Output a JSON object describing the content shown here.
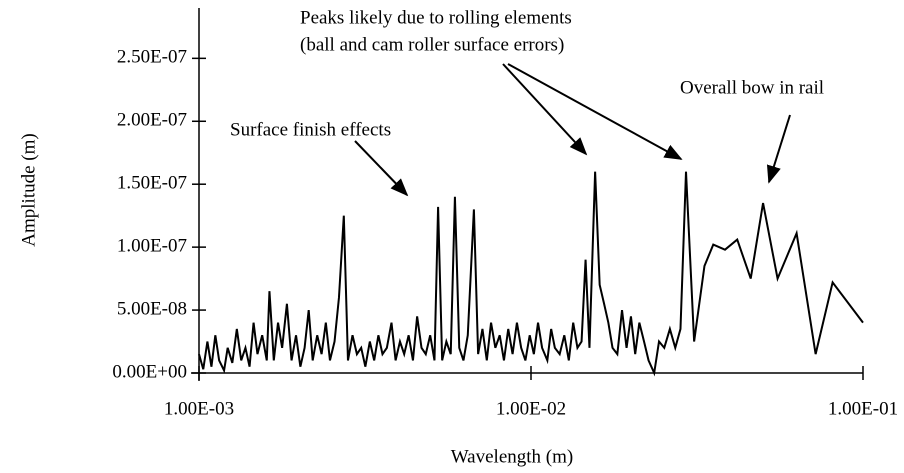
{
  "chart_data": {
    "type": "line",
    "xlabel": "Wavelength (m)",
    "ylabel": "Amplitude (m)",
    "xscale": "log",
    "xlim": [
      0.001,
      0.1
    ],
    "xticks": [
      {
        "value": 0.001,
        "label": "1.00E-03"
      },
      {
        "value": 0.01,
        "label": "1.00E-02"
      },
      {
        "value": 0.1,
        "label": "1.00E-01"
      }
    ],
    "ylim": [
      0,
      2.9e-07
    ],
    "yticks": [
      {
        "value": 0,
        "label": "0.00E+00"
      },
      {
        "value": 5e-08,
        "label": "5.00E-08"
      },
      {
        "value": 1e-07,
        "label": "1.00E-07"
      },
      {
        "value": 1.5e-07,
        "label": "1.50E-07"
      },
      {
        "value": 2e-07,
        "label": "2.00E-07"
      },
      {
        "value": 2.5e-07,
        "label": "2.50E-07"
      }
    ],
    "grid": false,
    "annotations": [
      "Surface finish effects",
      "Peaks likely due to rolling elements",
      "(ball and cam roller surface errors)",
      "Overall bow in rail"
    ],
    "series": [
      {
        "color": "#000000",
        "x": [
          0.001,
          0.00103,
          0.00106,
          0.00109,
          0.00112,
          0.00115,
          0.00119,
          0.00122,
          0.00126,
          0.0013,
          0.00134,
          0.00138,
          0.00142,
          0.00146,
          0.0015,
          0.00155,
          0.0016,
          0.00163,
          0.00168,
          0.00173,
          0.00178,
          0.00184,
          0.0019,
          0.00196,
          0.00202,
          0.00208,
          0.00214,
          0.0022,
          0.00227,
          0.00234,
          0.00241,
          0.00248,
          0.00256,
          0.00264,
          0.00273,
          0.00281,
          0.0029,
          0.00299,
          0.00308,
          0.00317,
          0.00327,
          0.00337,
          0.00347,
          0.00357,
          0.00368,
          0.0038,
          0.00391,
          0.00403,
          0.00415,
          0.00428,
          0.00441,
          0.00454,
          0.00468,
          0.00482,
          0.00497,
          0.00512,
          0.00525,
          0.0054,
          0.00556,
          0.00573,
          0.0059,
          0.00608,
          0.00626,
          0.00645,
          0.00673,
          0.00693,
          0.00714,
          0.00736,
          0.00758,
          0.00781,
          0.00805,
          0.00829,
          0.00854,
          0.0088,
          0.00907,
          0.00934,
          0.00962,
          0.00991,
          0.0102,
          0.0105,
          0.0108,
          0.0112,
          0.0115,
          0.0118,
          0.0122,
          0.0126,
          0.013,
          0.0134,
          0.0138,
          0.0142,
          0.0146,
          0.015,
          0.0156,
          0.0161,
          0.0166,
          0.0171,
          0.0176,
          0.0182,
          0.0188,
          0.0194,
          0.02,
          0.0206,
          0.0212,
          0.0219,
          0.0226,
          0.0235,
          0.0243,
          0.0252,
          0.0262,
          0.0272,
          0.0282,
          0.0293,
          0.031,
          0.0333,
          0.0354,
          0.0384,
          0.0418,
          0.0459,
          0.05,
          0.0553,
          0.0631,
          0.072,
          0.081,
          0.1
        ],
        "values": [
          1.5e-08,
          3e-09,
          2.5e-08,
          5e-09,
          3e-08,
          1e-08,
          2e-09,
          2e-08,
          8e-09,
          3.5e-08,
          1e-08,
          2e-08,
          5e-09,
          4e-08,
          1.5e-08,
          3e-08,
          1e-08,
          6.5e-08,
          1e-08,
          4e-08,
          2e-08,
          5.5e-08,
          1e-08,
          3e-08,
          5e-09,
          2e-08,
          5e-08,
          1e-08,
          3e-08,
          1.5e-08,
          4e-08,
          1e-08,
          2.5e-08,
          6e-08,
          1.25e-07,
          1e-08,
          3e-08,
          1.5e-08,
          2e-08,
          5e-09,
          2.5e-08,
          1e-08,
          3e-08,
          1.5e-08,
          2e-08,
          4e-08,
          1e-08,
          2.5e-08,
          1.5e-08,
          3e-08,
          1e-08,
          4.5e-08,
          2e-08,
          1.5e-08,
          3e-08,
          1e-08,
          1.32e-07,
          1e-08,
          2.5e-08,
          1.5e-08,
          1.4e-07,
          2e-08,
          1e-08,
          3e-08,
          1.3e-07,
          1.5e-08,
          3.5e-08,
          1e-08,
          4e-08,
          2e-08,
          3e-08,
          1e-08,
          3.5e-08,
          1.5e-08,
          4e-08,
          2e-08,
          1e-08,
          3e-08,
          1.5e-08,
          4e-08,
          2e-08,
          1e-08,
          3.5e-08,
          2e-08,
          1.5e-08,
          3e-08,
          1e-08,
          4e-08,
          2e-08,
          2.5e-08,
          9e-08,
          2e-08,
          1.6e-07,
          7e-08,
          5.5e-08,
          4e-08,
          2e-08,
          1.5e-08,
          5e-08,
          2e-08,
          4.5e-08,
          1.5e-08,
          4e-08,
          2.5e-08,
          1e-08,
          0,
          2.5e-08,
          2e-08,
          3.5e-08,
          2e-08,
          3.5e-08,
          1.6e-07,
          2.5e-08,
          8.5e-08,
          1.02e-07,
          9.8e-08,
          1.06e-07,
          7.5e-08,
          1.35e-07,
          7.5e-08,
          1.11e-07,
          1.5e-08,
          7.2e-08,
          4e-08
        ]
      }
    ]
  }
}
